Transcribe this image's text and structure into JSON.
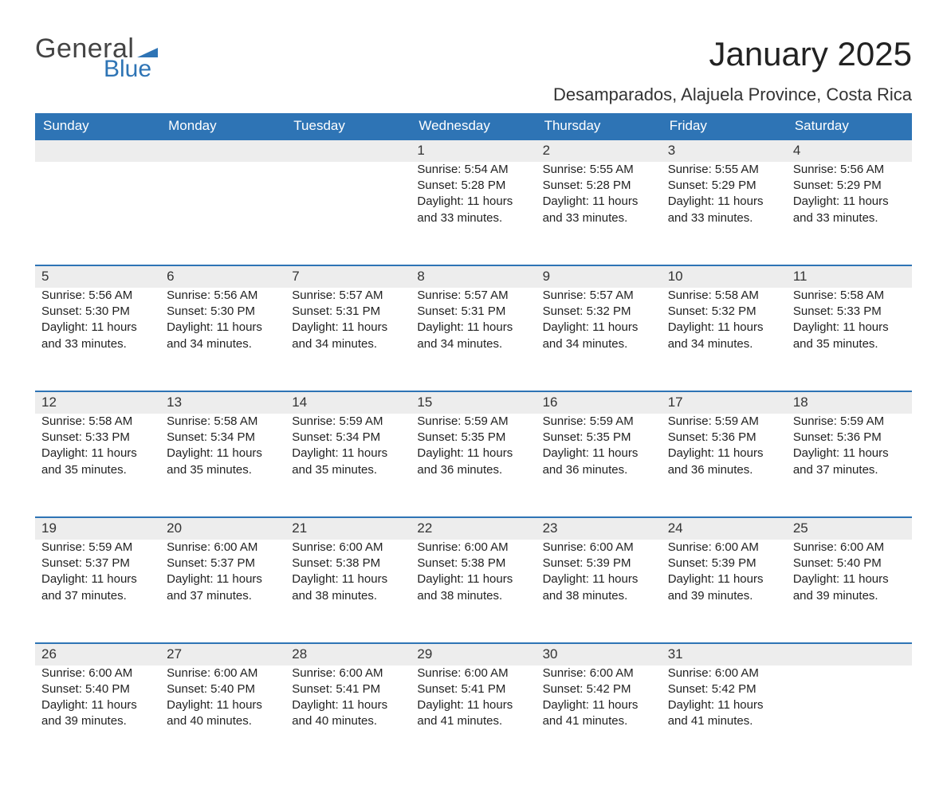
{
  "logo": {
    "general": "General",
    "blue": "Blue",
    "flag_color": "#2e74b5"
  },
  "title": "January 2025",
  "location": "Desamparados, Alajuela Province, Costa Rica",
  "colors": {
    "header_bg": "#2e74b5",
    "header_text": "#ffffff",
    "daynum_bg": "#ededed",
    "rule": "#2e74b5",
    "text": "#222222"
  },
  "day_headers": [
    "Sunday",
    "Monday",
    "Tuesday",
    "Wednesday",
    "Thursday",
    "Friday",
    "Saturday"
  ],
  "weeks": [
    [
      null,
      null,
      null,
      {
        "n": "1",
        "sunrise": "Sunrise: 5:54 AM",
        "sunset": "Sunset: 5:28 PM",
        "d1": "Daylight: 11 hours",
        "d2": "and 33 minutes."
      },
      {
        "n": "2",
        "sunrise": "Sunrise: 5:55 AM",
        "sunset": "Sunset: 5:28 PM",
        "d1": "Daylight: 11 hours",
        "d2": "and 33 minutes."
      },
      {
        "n": "3",
        "sunrise": "Sunrise: 5:55 AM",
        "sunset": "Sunset: 5:29 PM",
        "d1": "Daylight: 11 hours",
        "d2": "and 33 minutes."
      },
      {
        "n": "4",
        "sunrise": "Sunrise: 5:56 AM",
        "sunset": "Sunset: 5:29 PM",
        "d1": "Daylight: 11 hours",
        "d2": "and 33 minutes."
      }
    ],
    [
      {
        "n": "5",
        "sunrise": "Sunrise: 5:56 AM",
        "sunset": "Sunset: 5:30 PM",
        "d1": "Daylight: 11 hours",
        "d2": "and 33 minutes."
      },
      {
        "n": "6",
        "sunrise": "Sunrise: 5:56 AM",
        "sunset": "Sunset: 5:30 PM",
        "d1": "Daylight: 11 hours",
        "d2": "and 34 minutes."
      },
      {
        "n": "7",
        "sunrise": "Sunrise: 5:57 AM",
        "sunset": "Sunset: 5:31 PM",
        "d1": "Daylight: 11 hours",
        "d2": "and 34 minutes."
      },
      {
        "n": "8",
        "sunrise": "Sunrise: 5:57 AM",
        "sunset": "Sunset: 5:31 PM",
        "d1": "Daylight: 11 hours",
        "d2": "and 34 minutes."
      },
      {
        "n": "9",
        "sunrise": "Sunrise: 5:57 AM",
        "sunset": "Sunset: 5:32 PM",
        "d1": "Daylight: 11 hours",
        "d2": "and 34 minutes."
      },
      {
        "n": "10",
        "sunrise": "Sunrise: 5:58 AM",
        "sunset": "Sunset: 5:32 PM",
        "d1": "Daylight: 11 hours",
        "d2": "and 34 minutes."
      },
      {
        "n": "11",
        "sunrise": "Sunrise: 5:58 AM",
        "sunset": "Sunset: 5:33 PM",
        "d1": "Daylight: 11 hours",
        "d2": "and 35 minutes."
      }
    ],
    [
      {
        "n": "12",
        "sunrise": "Sunrise: 5:58 AM",
        "sunset": "Sunset: 5:33 PM",
        "d1": "Daylight: 11 hours",
        "d2": "and 35 minutes."
      },
      {
        "n": "13",
        "sunrise": "Sunrise: 5:58 AM",
        "sunset": "Sunset: 5:34 PM",
        "d1": "Daylight: 11 hours",
        "d2": "and 35 minutes."
      },
      {
        "n": "14",
        "sunrise": "Sunrise: 5:59 AM",
        "sunset": "Sunset: 5:34 PM",
        "d1": "Daylight: 11 hours",
        "d2": "and 35 minutes."
      },
      {
        "n": "15",
        "sunrise": "Sunrise: 5:59 AM",
        "sunset": "Sunset: 5:35 PM",
        "d1": "Daylight: 11 hours",
        "d2": "and 36 minutes."
      },
      {
        "n": "16",
        "sunrise": "Sunrise: 5:59 AM",
        "sunset": "Sunset: 5:35 PM",
        "d1": "Daylight: 11 hours",
        "d2": "and 36 minutes."
      },
      {
        "n": "17",
        "sunrise": "Sunrise: 5:59 AM",
        "sunset": "Sunset: 5:36 PM",
        "d1": "Daylight: 11 hours",
        "d2": "and 36 minutes."
      },
      {
        "n": "18",
        "sunrise": "Sunrise: 5:59 AM",
        "sunset": "Sunset: 5:36 PM",
        "d1": "Daylight: 11 hours",
        "d2": "and 37 minutes."
      }
    ],
    [
      {
        "n": "19",
        "sunrise": "Sunrise: 5:59 AM",
        "sunset": "Sunset: 5:37 PM",
        "d1": "Daylight: 11 hours",
        "d2": "and 37 minutes."
      },
      {
        "n": "20",
        "sunrise": "Sunrise: 6:00 AM",
        "sunset": "Sunset: 5:37 PM",
        "d1": "Daylight: 11 hours",
        "d2": "and 37 minutes."
      },
      {
        "n": "21",
        "sunrise": "Sunrise: 6:00 AM",
        "sunset": "Sunset: 5:38 PM",
        "d1": "Daylight: 11 hours",
        "d2": "and 38 minutes."
      },
      {
        "n": "22",
        "sunrise": "Sunrise: 6:00 AM",
        "sunset": "Sunset: 5:38 PM",
        "d1": "Daylight: 11 hours",
        "d2": "and 38 minutes."
      },
      {
        "n": "23",
        "sunrise": "Sunrise: 6:00 AM",
        "sunset": "Sunset: 5:39 PM",
        "d1": "Daylight: 11 hours",
        "d2": "and 38 minutes."
      },
      {
        "n": "24",
        "sunrise": "Sunrise: 6:00 AM",
        "sunset": "Sunset: 5:39 PM",
        "d1": "Daylight: 11 hours",
        "d2": "and 39 minutes."
      },
      {
        "n": "25",
        "sunrise": "Sunrise: 6:00 AM",
        "sunset": "Sunset: 5:40 PM",
        "d1": "Daylight: 11 hours",
        "d2": "and 39 minutes."
      }
    ],
    [
      {
        "n": "26",
        "sunrise": "Sunrise: 6:00 AM",
        "sunset": "Sunset: 5:40 PM",
        "d1": "Daylight: 11 hours",
        "d2": "and 39 minutes."
      },
      {
        "n": "27",
        "sunrise": "Sunrise: 6:00 AM",
        "sunset": "Sunset: 5:40 PM",
        "d1": "Daylight: 11 hours",
        "d2": "and 40 minutes."
      },
      {
        "n": "28",
        "sunrise": "Sunrise: 6:00 AM",
        "sunset": "Sunset: 5:41 PM",
        "d1": "Daylight: 11 hours",
        "d2": "and 40 minutes."
      },
      {
        "n": "29",
        "sunrise": "Sunrise: 6:00 AM",
        "sunset": "Sunset: 5:41 PM",
        "d1": "Daylight: 11 hours",
        "d2": "and 41 minutes."
      },
      {
        "n": "30",
        "sunrise": "Sunrise: 6:00 AM",
        "sunset": "Sunset: 5:42 PM",
        "d1": "Daylight: 11 hours",
        "d2": "and 41 minutes."
      },
      {
        "n": "31",
        "sunrise": "Sunrise: 6:00 AM",
        "sunset": "Sunset: 5:42 PM",
        "d1": "Daylight: 11 hours",
        "d2": "and 41 minutes."
      },
      null
    ]
  ]
}
